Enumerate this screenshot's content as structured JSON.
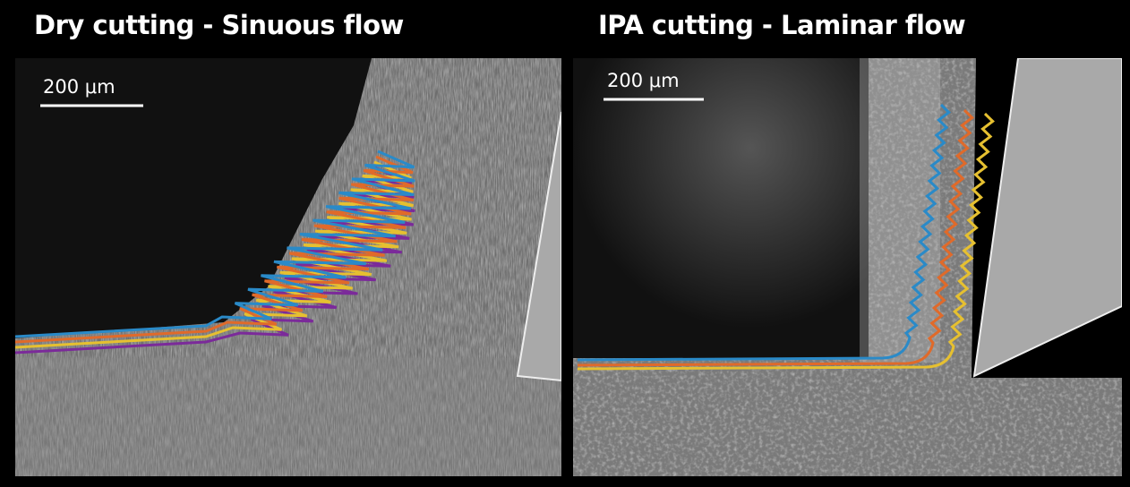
{
  "panels": [
    {
      "title": "Dry cutting - Sinuous flow",
      "scale_label": "200 μm"
    },
    {
      "title": "IPA cutting - Laminar flow",
      "scale_label": "200 μm"
    }
  ]
}
